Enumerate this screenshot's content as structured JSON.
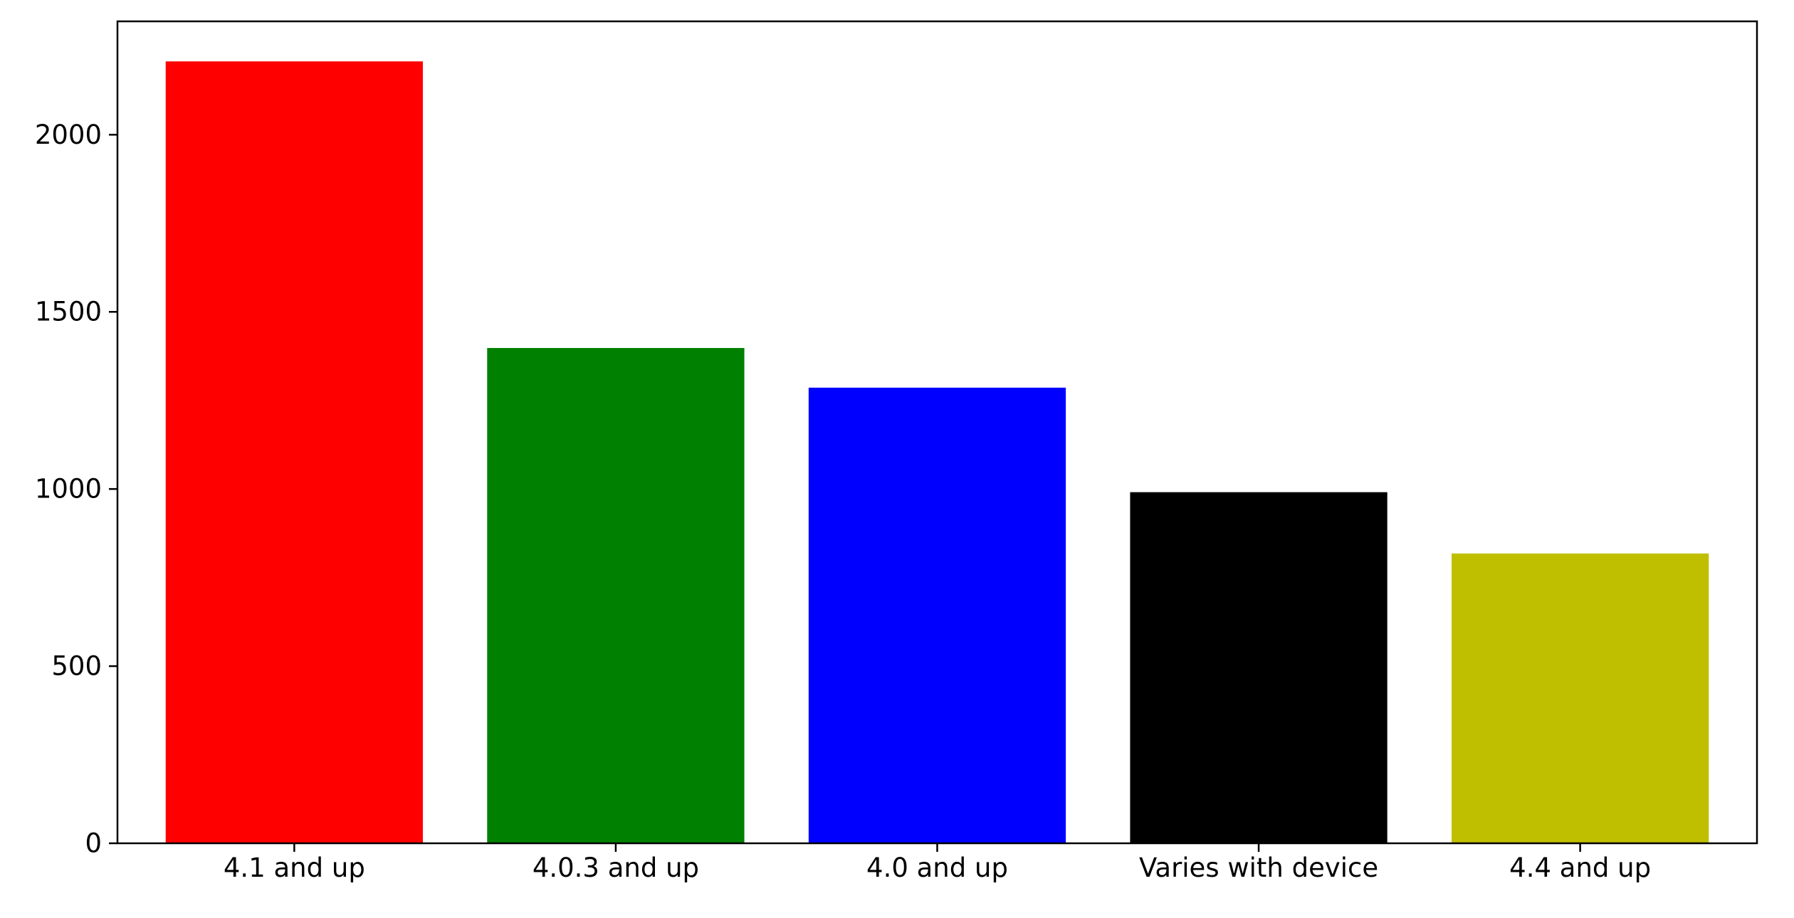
{
  "chart_data": {
    "type": "bar",
    "title": "",
    "xlabel": "",
    "ylabel": "",
    "categories": [
      "4.1 and up",
      "4.0.3 and up",
      "4.0 and up",
      "Varies with device",
      "4.4 and up"
    ],
    "values": [
      2207,
      1398,
      1286,
      991,
      818
    ],
    "colors": [
      "#ff0000",
      "#008000",
      "#0000ff",
      "#000000",
      "#bfbf00"
    ],
    "ylim": [
      0,
      2320
    ],
    "yticks": [
      0,
      500,
      1000,
      1500,
      2000
    ],
    "grid": false,
    "legend": "none"
  }
}
